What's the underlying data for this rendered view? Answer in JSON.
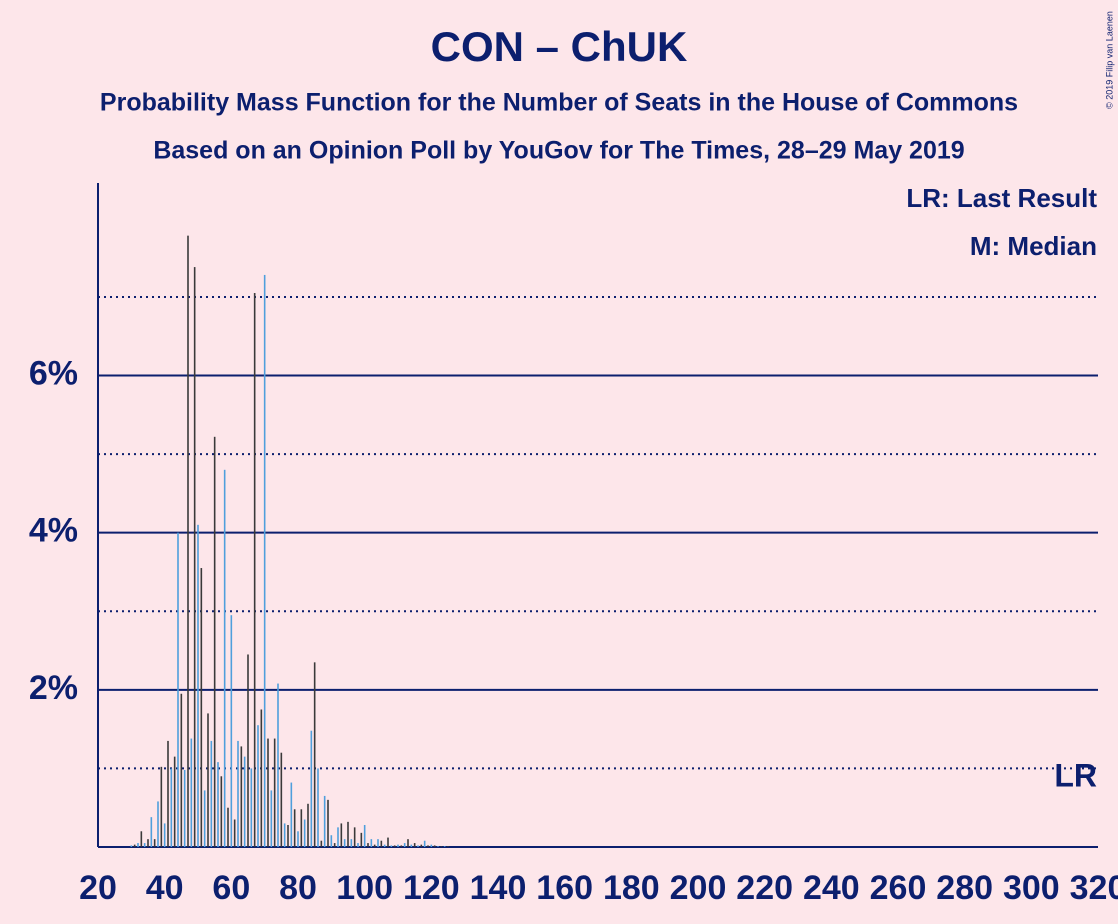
{
  "chart_data": {
    "type": "bar",
    "title": "CON – ChUK",
    "subtitle": "Probability Mass Function for the Number of Seats in the House of Commons",
    "subtitle2": "Based on an Opinion Poll by YouGov for The Times, 28–29 May 2019",
    "legend": [
      "LR: Last Result",
      "M: Median"
    ],
    "last_result_label": "LR",
    "copyright": "© 2019 Filip van Laenen",
    "x": [
      30,
      31,
      32,
      33,
      34,
      35,
      36,
      37,
      38,
      39,
      40,
      41,
      42,
      43,
      44,
      45,
      46,
      47,
      48,
      49,
      50,
      51,
      52,
      53,
      54,
      55,
      56,
      57,
      58,
      59,
      60,
      61,
      62,
      63,
      64,
      65,
      66,
      67,
      68,
      69,
      70,
      71,
      72,
      73,
      74,
      75,
      76,
      77,
      78,
      79,
      80,
      81,
      82,
      83,
      84,
      85,
      86,
      87,
      88,
      89,
      90,
      91,
      92,
      93,
      94,
      95,
      96,
      97,
      98,
      99,
      100,
      101,
      102,
      103,
      104,
      105,
      106,
      107,
      108,
      109,
      110,
      111,
      112,
      113,
      114,
      115,
      116,
      117,
      118,
      119,
      120,
      121,
      122,
      123,
      124,
      125
    ],
    "values": [
      0.02,
      0.03,
      0.05,
      0.2,
      0.05,
      0.1,
      0.38,
      0.1,
      0.58,
      1.02,
      0.3,
      1.35,
      1.0,
      1.15,
      4.0,
      1.95,
      0.98,
      7.78,
      1.38,
      7.38,
      4.1,
      3.55,
      0.72,
      1.7,
      1.35,
      5.22,
      1.08,
      0.9,
      4.8,
      0.5,
      2.95,
      0.35,
      1.35,
      1.28,
      1.15,
      2.45,
      1.0,
      7.05,
      1.55,
      1.75,
      7.28,
      1.38,
      0.72,
      1.38,
      2.08,
      1.2,
      0.3,
      0.28,
      0.82,
      0.48,
      0.2,
      0.48,
      0.35,
      0.55,
      1.48,
      2.35,
      1.0,
      0.08,
      0.65,
      0.6,
      0.15,
      0.05,
      0.25,
      0.3,
      0.1,
      0.32,
      0.1,
      0.25,
      0.05,
      0.18,
      0.28,
      0.05,
      0.1,
      0.03,
      0.1,
      0.08,
      0.03,
      0.12,
      0.02,
      0.02,
      0.03,
      0.02,
      0.05,
      0.1,
      0.03,
      0.05,
      0.02,
      0.03,
      0.08,
      0.02,
      0.03,
      0.02,
      0.01,
      0.01,
      0.01,
      0.01
    ],
    "colors": [
      "#4f9fdc",
      "#3a3a3a"
    ],
    "xlim": [
      20,
      320
    ],
    "xticks": [
      20,
      40,
      60,
      80,
      100,
      120,
      140,
      160,
      180,
      200,
      220,
      240,
      260,
      280,
      300,
      320
    ],
    "ylim": [
      0,
      8.45
    ],
    "yticks": [
      {
        "value": 2,
        "label": "2%"
      },
      {
        "value": 4,
        "label": "4%"
      },
      {
        "value": 6,
        "label": "6%"
      }
    ],
    "minor_yticks": [
      1,
      3,
      5,
      7
    ],
    "grid": true
  }
}
